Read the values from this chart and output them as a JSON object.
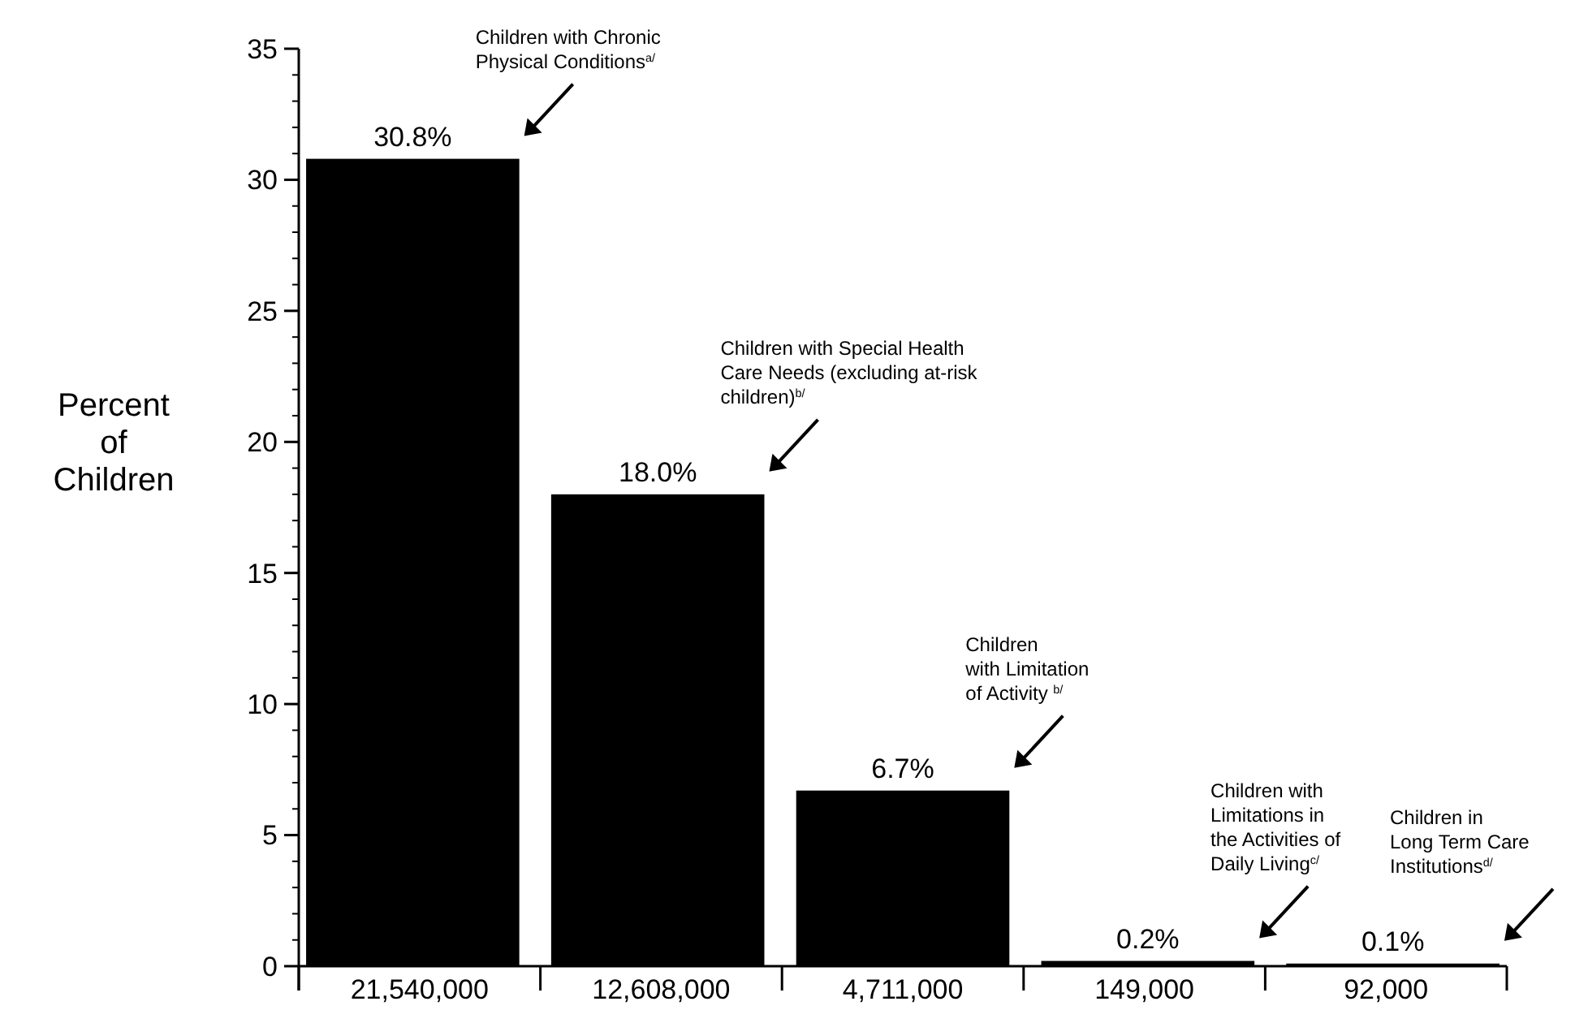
{
  "chart_data": {
    "type": "bar",
    "ylabel": "Percent of Children",
    "categories": [
      "21,540,000",
      "12,608,000",
      "4,711,000",
      "149,000",
      "92,000"
    ],
    "series": [
      {
        "color": "#000000",
        "values": [
          30.8,
          18.0,
          6.7,
          0.2,
          0.1
        ],
        "value_labels": [
          "30.8%",
          "18.0%",
          "6.7%",
          "0.2%",
          "0.1%"
        ]
      }
    ],
    "ylim": [
      0,
      35
    ],
    "yticks": [
      0,
      5,
      10,
      15,
      20,
      25,
      30,
      35
    ],
    "grid": false,
    "annotations": [
      "Children with Chronic\nPhysical Conditions$^{a/}$",
      "Children with Special Health\nCare Needs (excluding at-risk\nchildren)$^{b/}$",
      "Children\nwith Limitation\nof Activity $^{b/}$",
      "Children with\nLimitations in\nthe Activities of\nDaily Living$^{c/}$",
      "Children in\nLong Term Care\nInstitutions$^{d/}$"
    ]
  }
}
